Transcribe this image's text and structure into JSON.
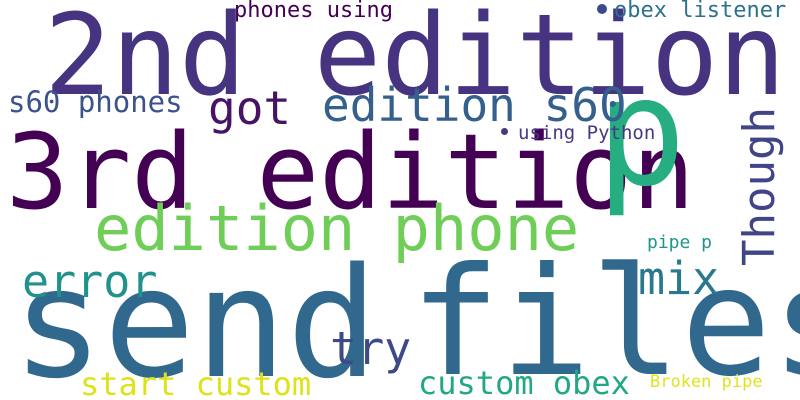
{
  "words": [
    {
      "text": "2nd edition",
      "color": "#463480"
    },
    {
      "text": "3rd edition",
      "color": "#440154"
    },
    {
      "text": "send",
      "color": "#31688e"
    },
    {
      "text": "files",
      "color": "#31688e"
    },
    {
      "text": "p",
      "color": "#26ad81"
    },
    {
      "text": "edition phone",
      "color": "#6ece58"
    },
    {
      "text": "edition s60",
      "color": "#355f8d"
    },
    {
      "text": "got",
      "color": "#471365"
    },
    {
      "text": "s60 phones",
      "color": "#3b528b"
    },
    {
      "text": "phones using",
      "color": "#440154"
    },
    {
      "text": "obex listener",
      "color": "#2c728e"
    },
    {
      "text": "using Python",
      "color": "#443a83"
    },
    {
      "text": "Though",
      "color": "#414487"
    },
    {
      "text": "error",
      "color": "#21918c"
    },
    {
      "text": "mix",
      "color": "#29788e"
    },
    {
      "text": "try",
      "color": "#3e4989"
    },
    {
      "text": "pipe p",
      "color": "#1f968b"
    },
    {
      "text": "start custom",
      "color": "#dde318"
    },
    {
      "text": "custom obex",
      "color": "#22a884"
    },
    {
      "text": "Broken pipe",
      "color": "#e0e31b"
    }
  ],
  "dots": [
    {
      "color": "#3e4989"
    },
    {
      "color": "#443a83"
    }
  ]
}
